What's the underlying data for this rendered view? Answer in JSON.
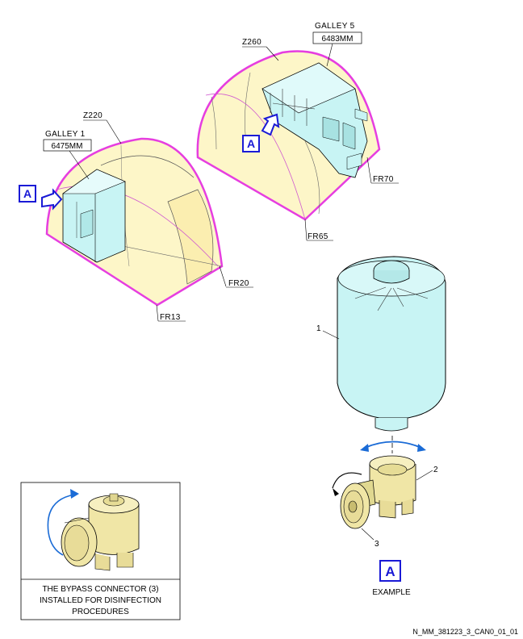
{
  "zones": {
    "z220": "Z220",
    "z260": "Z260"
  },
  "galleys": {
    "galley1": {
      "name": "GALLEY 1",
      "ref": "6475MM"
    },
    "galley5": {
      "name": "GALLEY 5",
      "ref": "6483MM"
    }
  },
  "frames": {
    "fr13": "FR13",
    "fr20": "FR20",
    "fr65": "FR65",
    "fr70": "FR70"
  },
  "view_marker": "A",
  "callouts": {
    "item1": "1",
    "item2": "2",
    "item3": "3"
  },
  "example_label": "EXAMPLE",
  "inset_caption": {
    "line1": "THE BYPASS CONNECTOR (3)",
    "line2": "INSTALLED FOR DISINFECTION",
    "line3": "PROCEDURES"
  },
  "figure_id": "N_MM_381223_3_CAN0_01_01",
  "colors": {
    "fuselage_fill": "#fdf6c8",
    "fuselage_outline": "#e63ee0",
    "galley_fill": "#c8f4f4",
    "brass": "#f0e6a6",
    "marker_blue": "#1a1ad6"
  }
}
